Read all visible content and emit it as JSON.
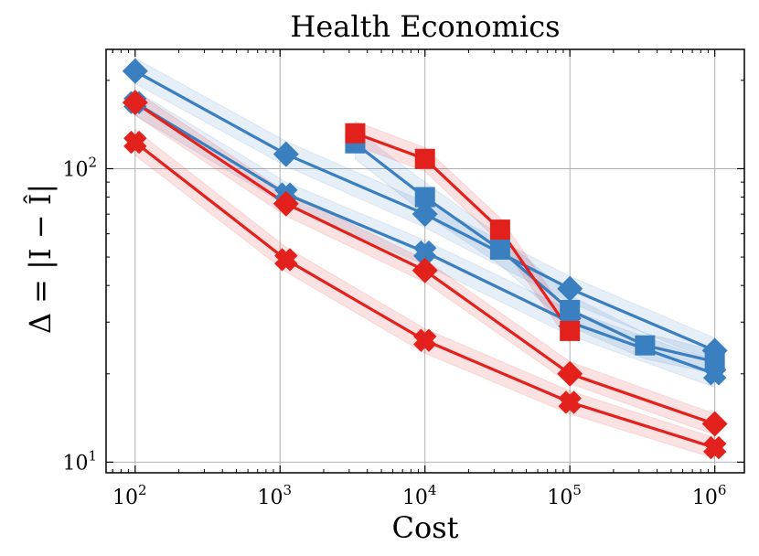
{
  "chart_data": {
    "type": "line",
    "title": "Health Economics",
    "xlabel": "Cost",
    "ylabel": "Δ = |I − Î|",
    "x_scale": "log",
    "y_scale": "log",
    "xlim": [
      63,
      1600000
    ],
    "ylim": [
      9.2,
      255
    ],
    "grid": true,
    "x_ticks": [
      {
        "value": 100,
        "base": "10",
        "exp": "2"
      },
      {
        "value": 1000,
        "base": "10",
        "exp": "3"
      },
      {
        "value": 10000,
        "base": "10",
        "exp": "4"
      },
      {
        "value": 100000,
        "base": "10",
        "exp": "5"
      },
      {
        "value": 1000000,
        "base": "10",
        "exp": "6"
      }
    ],
    "y_ticks": [
      {
        "value": 10,
        "base": "10",
        "exp": "1"
      },
      {
        "value": 100,
        "base": "10",
        "exp": "2"
      }
    ],
    "series": [
      {
        "name": "blue-diamond",
        "color": "#3a7fbf",
        "marker": "diamond",
        "x": [
          100,
          1100,
          10000,
          100000,
          1000000
        ],
        "y": [
          215,
          112,
          70,
          39,
          24
        ],
        "lower": [
          195,
          102,
          63,
          35,
          22
        ],
        "upper": [
          238,
          124,
          77,
          43,
          26.5
        ]
      },
      {
        "name": "blue-x",
        "color": "#3a7fbf",
        "marker": "x",
        "x": [
          100,
          1100,
          10000,
          100000,
          1000000
        ],
        "y": [
          168,
          82,
          52,
          30,
          20
        ],
        "lower": [
          152,
          75,
          47,
          27,
          18
        ],
        "upper": [
          185,
          90,
          57,
          33,
          22
        ]
      },
      {
        "name": "blue-square",
        "color": "#3a7fbf",
        "marker": "square",
        "x": [
          3300,
          10000,
          33000,
          100000,
          330000,
          1000000
        ],
        "y": [
          122,
          80,
          53,
          33,
          25,
          22
        ],
        "lower": [
          108,
          70,
          47,
          29,
          22.5,
          20
        ],
        "upper": [
          136,
          90,
          59,
          37,
          27.5,
          24
        ]
      },
      {
        "name": "red-square",
        "color": "#e3211c",
        "marker": "square",
        "x": [
          3300,
          10000,
          33000,
          100000
        ],
        "y": [
          132,
          108,
          62,
          28
        ],
        "lower": [
          120,
          98,
          56,
          25.5
        ],
        "upper": [
          145,
          118,
          68,
          31
        ]
      },
      {
        "name": "red-diamond",
        "color": "#e3211c",
        "marker": "diamond",
        "x": [
          100,
          1100,
          10000,
          100000,
          1000000
        ],
        "y": [
          168,
          76,
          45,
          20,
          13.5
        ],
        "lower": [
          152,
          69,
          41,
          18.5,
          12.4
        ],
        "upper": [
          184,
          83,
          49,
          22,
          14.6
        ]
      },
      {
        "name": "red-x",
        "color": "#e3211c",
        "marker": "x",
        "x": [
          100,
          1100,
          10000,
          100000,
          1000000
        ],
        "y": [
          123,
          49,
          26,
          16,
          11.2
        ],
        "lower": [
          111,
          44.5,
          23.5,
          14.6,
          10.3
        ],
        "upper": [
          136,
          54,
          28.5,
          17.5,
          12.1
        ]
      }
    ]
  }
}
